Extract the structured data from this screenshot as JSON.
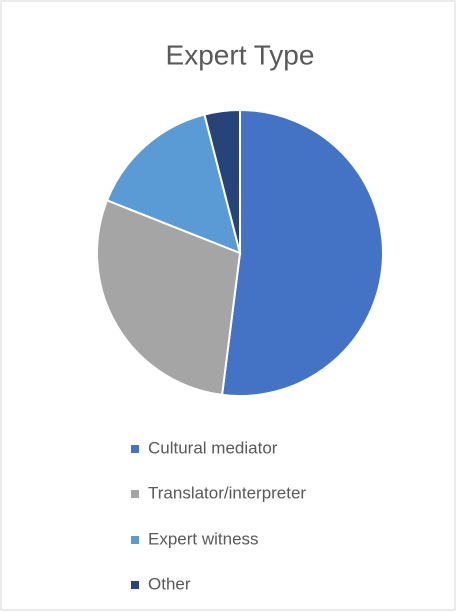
{
  "chart_data": {
    "type": "pie",
    "title": "Expert Type",
    "categories": [
      "Cultural mediator",
      "Translator/interpreter",
      "Expert witness",
      "Other"
    ],
    "values": [
      52,
      29,
      15,
      4
    ],
    "colors": [
      "#4472c4",
      "#a5a5a5",
      "#5b9bd5",
      "#264478"
    ],
    "legend": "bottom"
  }
}
